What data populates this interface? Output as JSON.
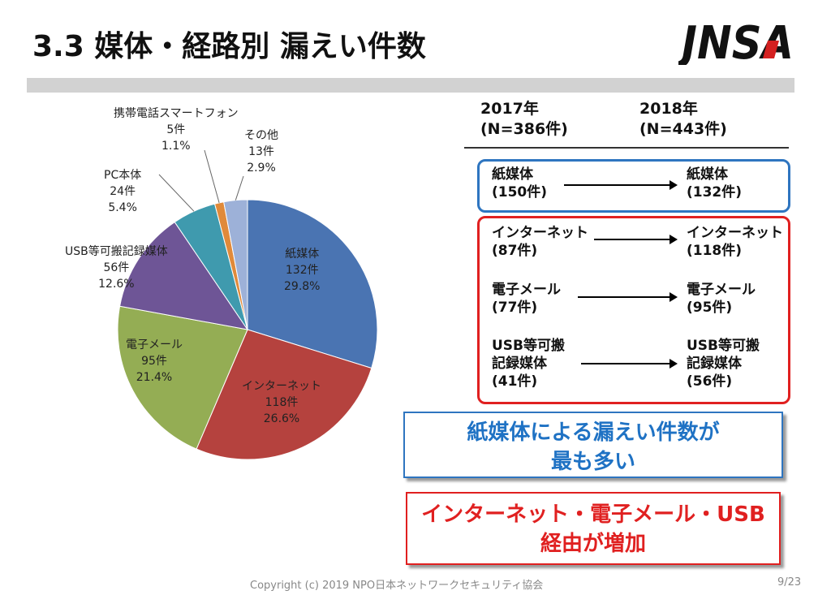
{
  "slide": {
    "title": "3.3 媒体・経路別 漏えい件数",
    "logo_text": "JNSA"
  },
  "chart_data": {
    "type": "pie",
    "title": "",
    "slices": [
      {
        "name": "紙媒体",
        "count_label": "132件",
        "percent_label": "29.8%",
        "value": 132,
        "percent": 29.8,
        "color": "#4a74b2"
      },
      {
        "name": "インターネット",
        "count_label": "118件",
        "percent_label": "26.6%",
        "value": 118,
        "percent": 26.6,
        "color": "#b5423e"
      },
      {
        "name": "電子メール",
        "count_label": "95件",
        "percent_label": "21.4%",
        "value": 95,
        "percent": 21.4,
        "color": "#94ad54"
      },
      {
        "name": "USB等可搬記録媒体",
        "count_label": "56件",
        "percent_label": "12.6%",
        "value": 56,
        "percent": 12.6,
        "color": "#6e5596"
      },
      {
        "name": "PC本体",
        "count_label": "24件",
        "percent_label": "5.4%",
        "value": 24,
        "percent": 5.4,
        "color": "#3f9aae"
      },
      {
        "name": "携帯電話スマートフォン",
        "count_label": "5件",
        "percent_label": "1.1%",
        "value": 5,
        "percent": 1.1,
        "color": "#e08a3a"
      },
      {
        "name": "その他",
        "count_label": "13件",
        "percent_label": "2.9%",
        "value": 13,
        "percent": 2.9,
        "color": "#9db1d8"
      }
    ]
  },
  "comparison": {
    "year1": {
      "year": "2017年",
      "n": "(N=386件)"
    },
    "year2": {
      "year": "2018年",
      "n": "(N=443件)"
    },
    "blue_group": [
      {
        "from_line1": "紙媒体",
        "from_count": "(150件)",
        "to_line1": "紙媒体",
        "to_count": "(132件)"
      }
    ],
    "red_group": [
      {
        "from_line1": "インターネット",
        "from_count": "(87件)",
        "to_line1": "インターネット",
        "to_count": "(118件)"
      },
      {
        "from_line1": "電子メール",
        "from_count": "(77件)",
        "to_line1": "電子メール",
        "to_count": "(95件)"
      },
      {
        "from_line1": "USB等可搬",
        "from_line2": "記録媒体",
        "from_count": "(41件)",
        "to_line1": "USB等可搬",
        "to_line2": "記録媒体",
        "to_count": "(56件)"
      }
    ]
  },
  "callouts": {
    "blue": {
      "line1": "紙媒体による漏えい件数が",
      "line2": "最も多い"
    },
    "red": {
      "line1": "インターネット・電子メール・USB",
      "line2": "経由が増加"
    }
  },
  "footer": {
    "copyright": "Copyright (c) 2019 NPO日本ネットワークセキュリティ協会",
    "page": "9/23"
  }
}
